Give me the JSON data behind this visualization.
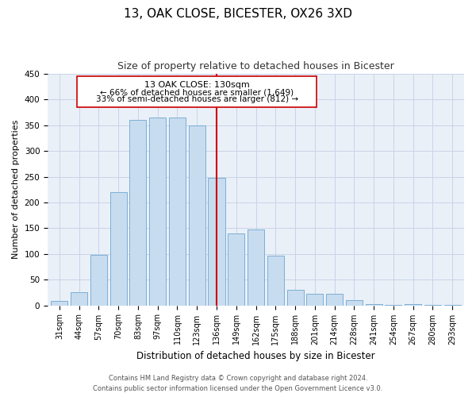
{
  "title": "13, OAK CLOSE, BICESTER, OX26 3XD",
  "subtitle": "Size of property relative to detached houses in Bicester",
  "xlabel": "Distribution of detached houses by size in Bicester",
  "ylabel": "Number of detached properties",
  "bar_labels": [
    "31sqm",
    "44sqm",
    "57sqm",
    "70sqm",
    "83sqm",
    "97sqm",
    "110sqm",
    "123sqm",
    "136sqm",
    "149sqm",
    "162sqm",
    "175sqm",
    "188sqm",
    "201sqm",
    "214sqm",
    "228sqm",
    "241sqm",
    "254sqm",
    "267sqm",
    "280sqm",
    "293sqm"
  ],
  "bar_values": [
    8,
    25,
    98,
    220,
    360,
    365,
    365,
    350,
    248,
    140,
    148,
    97,
    30,
    22,
    22,
    10,
    2,
    1,
    2,
    1,
    1
  ],
  "bar_color": "#c8dcf0",
  "bar_edge_color": "#7bafd4",
  "vline_color": "#cc0000",
  "vline_bar_index": 8,
  "annotation_title": "13 OAK CLOSE: 130sqm",
  "annotation_line1": "← 66% of detached houses are smaller (1,649)",
  "annotation_line2": "33% of semi-detached houses are larger (812) →",
  "annotation_box_edge_color": "#cc0000",
  "annotation_box_face_color": "#ffffff",
  "footer_line1": "Contains HM Land Registry data © Crown copyright and database right 2024.",
  "footer_line2": "Contains public sector information licensed under the Open Government Licence v3.0.",
  "ylim": [
    0,
    450
  ],
  "title_fontsize": 11,
  "subtitle_fontsize": 9,
  "ylabel_fontsize": 8,
  "xlabel_fontsize": 8.5,
  "tick_fontsize": 7,
  "background_color": "#ffffff",
  "ax_facecolor": "#eaf0f8",
  "grid_color": "#c8d4e8"
}
